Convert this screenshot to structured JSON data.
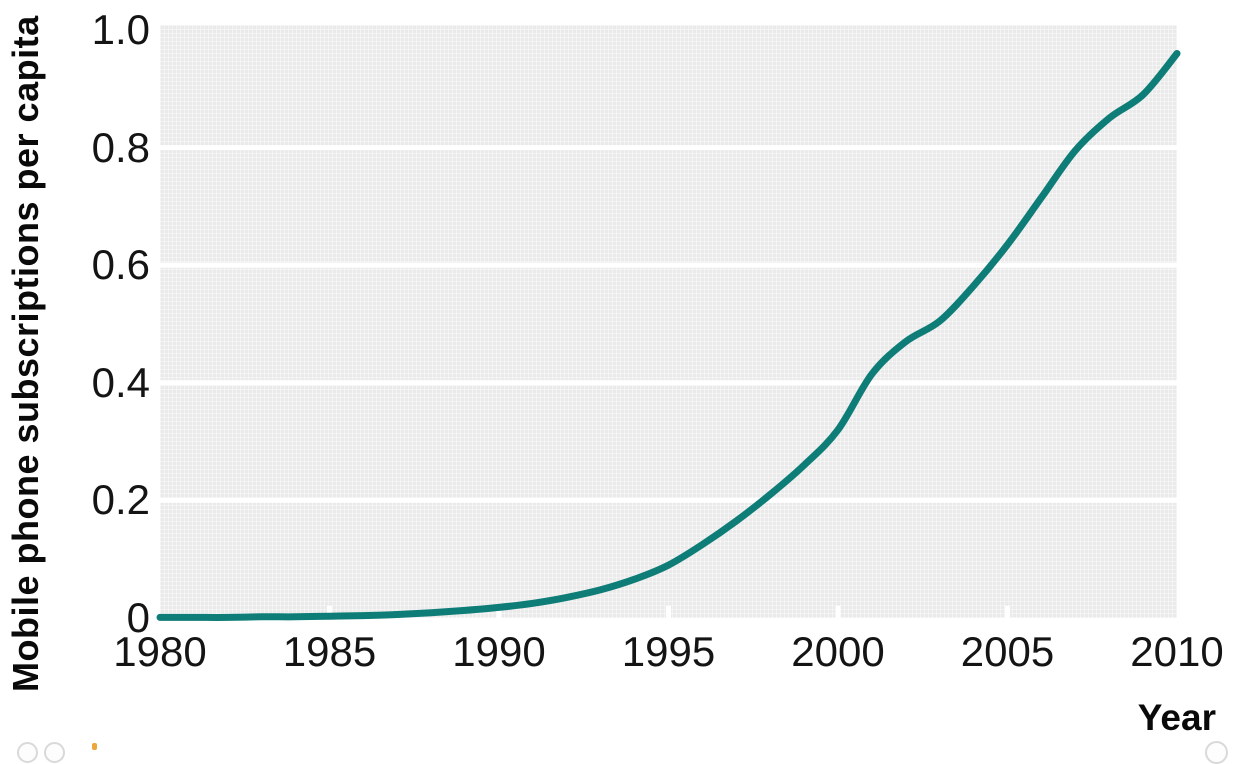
{
  "style": {
    "page_background": "#ffffff",
    "plot_background": "#eaeaea",
    "gridline_color": "#ffffff",
    "tick_mark_color": "#ffffff",
    "text_color": "#141414",
    "line_color": "#0e7d78",
    "orange_marker_color": "#eda63c",
    "edge_button_border_color": "#d9d9d9"
  },
  "chart_data": {
    "type": "line",
    "title": "",
    "xlabel": "Year",
    "ylabel": "Mobile phone subscriptions per capita",
    "xlim": [
      1980,
      2010
    ],
    "ylim": [
      0,
      1.0
    ],
    "x_ticks": [
      1980,
      1985,
      1990,
      1995,
      2000,
      2005,
      2010
    ],
    "x_tick_labels": [
      "1980",
      "1985",
      "1990",
      "1995",
      "2000",
      "2005",
      "2010"
    ],
    "y_ticks": [
      0,
      0.2,
      0.4,
      0.6,
      0.8,
      1.0
    ],
    "y_tick_labels": [
      "0",
      "0.2",
      "0.4",
      "0.6",
      "0.8",
      "1.0"
    ],
    "grid": "horizontal white gridlines on light gray plot background",
    "legend_position": "none",
    "series": [
      {
        "name": "Mobile phone subscriptions per capita",
        "color": "#0e7d78",
        "x": [
          1980,
          1981,
          1982,
          1983,
          1984,
          1985,
          1986,
          1987,
          1988,
          1989,
          1990,
          1991,
          1992,
          1993,
          1994,
          1995,
          1996,
          1997,
          1998,
          1999,
          2000,
          2001,
          2002,
          2003,
          2004,
          2005,
          2006,
          2007,
          2008,
          2009,
          2010
        ],
        "y": [
          0.001,
          0.001,
          0.001,
          0.002,
          0.002,
          0.003,
          0.004,
          0.006,
          0.009,
          0.013,
          0.018,
          0.025,
          0.035,
          0.048,
          0.066,
          0.09,
          0.125,
          0.165,
          0.21,
          0.26,
          0.32,
          0.415,
          0.47,
          0.505,
          0.565,
          0.635,
          0.715,
          0.795,
          0.85,
          0.89,
          0.96
        ]
      }
    ]
  },
  "ui": {
    "bottom_left_buttons": [
      "edge-button-1",
      "edge-button-2"
    ],
    "bottom_right_button": "edge-button-3",
    "orange_marker": "orange-marker"
  }
}
